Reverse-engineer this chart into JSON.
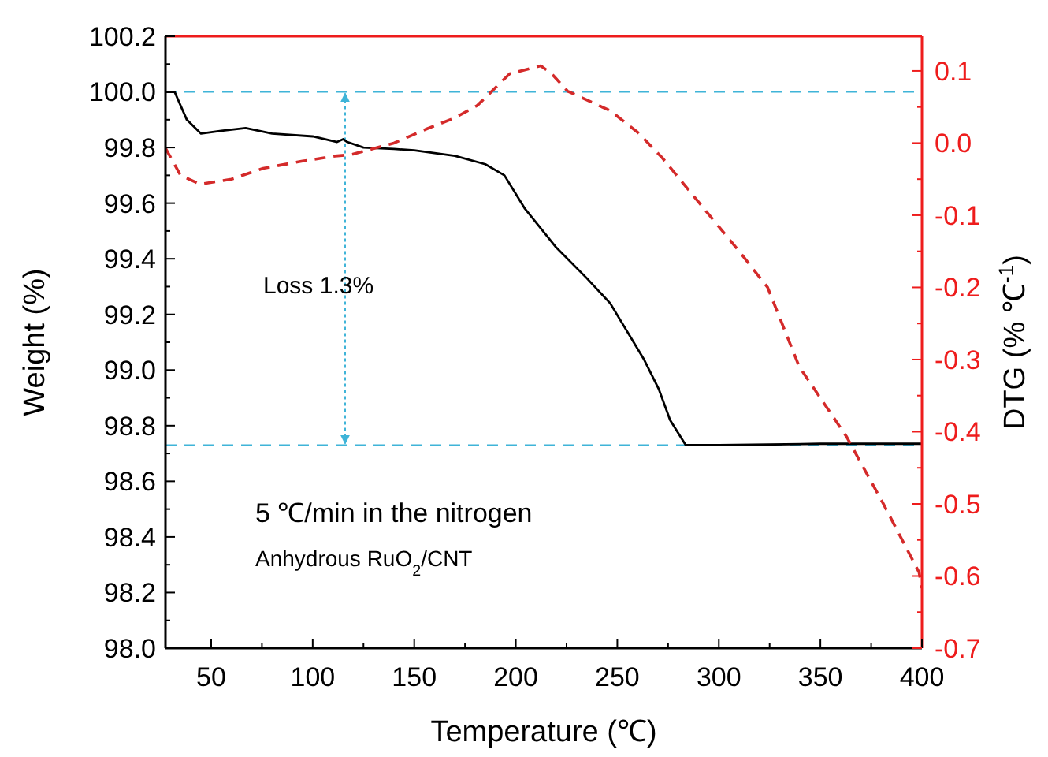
{
  "chart_data": {
    "type": "line",
    "xlabel": "Temperature (℃)",
    "ylabel": "Weight (%)",
    "y2label": "DTG (% ℃$^{-1}$)",
    "xlim": [
      27.5,
      400
    ],
    "xticks": [
      50,
      {
        "value": 75,
        "label": null
      },
      100,
      {
        "value": 125,
        "label": null
      },
      150,
      {
        "value": 175,
        "label": null
      },
      200,
      {
        "value": 225,
        "label": null
      },
      250,
      {
        "value": 275,
        "label": null
      },
      300,
      {
        "value": 325,
        "label": null
      },
      350,
      {
        "value": 375,
        "label": null
      },
      400
    ],
    "ylim": [
      98.0,
      100.2
    ],
    "yticks": [
      {
        "value": 98.0,
        "label": "98.0"
      },
      {
        "value": 98.1,
        "label": null
      },
      {
        "value": 98.2,
        "label": "98.2"
      },
      {
        "value": 98.3,
        "label": null
      },
      {
        "value": 98.4,
        "label": "98.4"
      },
      {
        "value": 98.5,
        "label": null
      },
      {
        "value": 98.6,
        "label": "98.6"
      },
      {
        "value": 98.7,
        "label": null
      },
      {
        "value": 98.8,
        "label": "98.8"
      },
      {
        "value": 98.9,
        "label": null
      },
      {
        "value": 99.0,
        "label": "99.0"
      },
      {
        "value": 99.1,
        "label": null
      },
      {
        "value": 99.2,
        "label": "99.2"
      },
      {
        "value": 99.3,
        "label": null
      },
      {
        "value": 99.4,
        "label": "99.4"
      },
      {
        "value": 99.5,
        "label": null
      },
      {
        "value": 99.6,
        "label": "99.6"
      },
      {
        "value": 99.7,
        "label": null
      },
      {
        "value": 99.8,
        "label": "99.8"
      },
      {
        "value": 99.9,
        "label": null
      },
      {
        "value": 100.0,
        "label": "100.0"
      },
      {
        "value": 100.1,
        "label": null
      },
      {
        "value": 100.2,
        "label": "100.2"
      }
    ],
    "y2lim": [
      -0.7,
      0.148
    ],
    "y2ticks": [
      {
        "value": -0.7,
        "label": "-0.7"
      },
      {
        "value": -0.65,
        "label": null
      },
      {
        "value": -0.6,
        "label": "-0.6"
      },
      {
        "value": -0.55,
        "label": null
      },
      {
        "value": -0.5,
        "label": "-0.5"
      },
      {
        "value": -0.45,
        "label": null
      },
      {
        "value": -0.4,
        "label": "-0.4"
      },
      {
        "value": -0.35,
        "label": null
      },
      {
        "value": -0.3,
        "label": "-0.3"
      },
      {
        "value": -0.25,
        "label": null
      },
      {
        "value": -0.2,
        "label": "-0.2"
      },
      {
        "value": -0.15,
        "label": null
      },
      {
        "value": -0.1,
        "label": "-0.1"
      },
      {
        "value": -0.05,
        "label": null
      },
      {
        "value": 0.0,
        "label": "0.0"
      },
      {
        "value": 0.05,
        "label": null
      },
      {
        "value": 0.1,
        "label": "0.1"
      }
    ],
    "series": [
      {
        "color": "#000000",
        "line_style": "solid",
        "x": [
          27.5,
          32,
          38,
          45,
          55,
          67,
          80,
          100,
          112,
          115,
          117,
          125,
          140,
          150,
          170,
          185,
          194.4,
          204.5,
          220,
          235,
          246.5,
          263,
          270.5,
          276,
          283.7,
          300,
          350,
          400
        ],
        "values": [
          100.0,
          100.0,
          99.9,
          99.85,
          99.86,
          99.87,
          99.85,
          99.84,
          99.82,
          99.83,
          99.82,
          99.8,
          99.795,
          99.79,
          99.77,
          99.74,
          99.7,
          99.58,
          99.44,
          99.33,
          99.24,
          99.04,
          98.93,
          98.82,
          98.73,
          98.73,
          98.735,
          98.735
        ]
      },
      {
        "color": "#d42a2a",
        "axis": "y2",
        "line_style": "dashed",
        "x": [
          27.5,
          35,
          44.6,
          60,
          75.6,
          95,
          111,
          119,
          140,
          155.6,
          170,
          181,
          197,
          212.3,
          217.7,
          225.5,
          246.4,
          260,
          272,
          293,
          310,
          324,
          339.6,
          362.9,
          381,
          398.6,
          400
        ],
        "values": [
          -0.007,
          -0.045,
          -0.057,
          -0.05,
          -0.035,
          -0.025,
          -0.018,
          -0.016,
          0.0,
          0.019,
          0.035,
          0.052,
          0.096,
          0.107,
          0.096,
          0.072,
          0.045,
          0.015,
          -0.02,
          -0.092,
          -0.15,
          -0.2,
          -0.31,
          -0.407,
          -0.5,
          -0.595,
          -0.617
        ]
      }
    ],
    "ref_lines": [
      {
        "axis": "y",
        "value": 100.0,
        "color": "#3fb4d8",
        "line_style": "dashed"
      },
      {
        "axis": "y",
        "value": 98.73,
        "color": "#3fb4d8",
        "line_style": "dashed"
      }
    ],
    "annotations": [
      "Loss 1.3%",
      "5 ℃/min in the nitrogen",
      "Anhydrous RuO$_{2}$/CNT"
    ],
    "grid": false
  }
}
